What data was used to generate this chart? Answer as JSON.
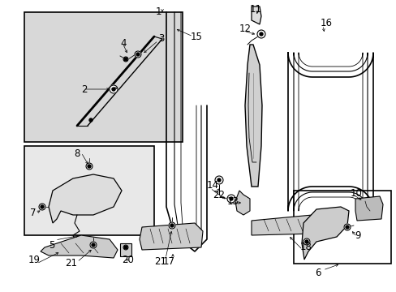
{
  "background_color": "#ffffff",
  "fig_width": 4.89,
  "fig_height": 3.6,
  "dpi": 100,
  "inset1_bg": "#e8e8e8",
  "inset2_bg": "#e8e8e8",
  "part_fill": "#e0e0e0",
  "col": "#000000"
}
